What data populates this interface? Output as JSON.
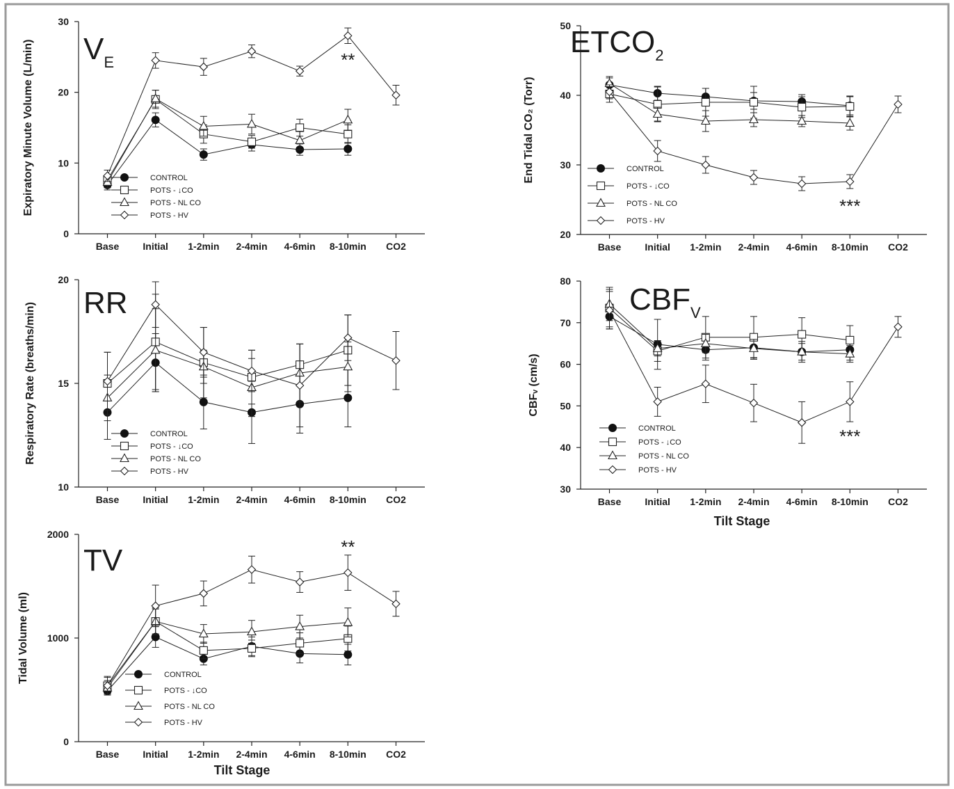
{
  "figure": {
    "x_title": "Tilt Stage",
    "panel_colors": {
      "line": "#222222",
      "fill_open": "#ffffff",
      "fill_solid": "#111111",
      "frame": "#999999"
    }
  },
  "chart_data": [
    {
      "id": "ve",
      "type": "line",
      "title": "V",
      "title_sub": "E",
      "ylabel": "Expiratory Minute Volume (L/min)",
      "xlabel": "",
      "categories": [
        "Base",
        "Initial",
        "1-2min",
        "2-4min",
        "4-6min",
        "8-10min",
        "CO2"
      ],
      "ylim": [
        0,
        30
      ],
      "yticks": [
        "0",
        "10",
        "20",
        "30"
      ],
      "legend_position": "lower-middle",
      "annotation": {
        "text": "**",
        "category": "8-10min"
      },
      "series": [
        {
          "name": "CONTROL",
          "marker": "circle-filled",
          "values": [
            6.9,
            16.1,
            11.2,
            12.6,
            11.9,
            12.0,
            null
          ],
          "errors": [
            0.7,
            1.0,
            0.8,
            0.9,
            0.8,
            0.9,
            null
          ]
        },
        {
          "name": "POTS - ↓CO",
          "marker": "square-open",
          "values": [
            7.6,
            19.0,
            14.1,
            13.0,
            15.0,
            14.1,
            null
          ],
          "errors": [
            0.7,
            1.3,
            1.3,
            0.9,
            1.2,
            1.3,
            null
          ]
        },
        {
          "name": "POTS - NL CO",
          "marker": "triangle-open",
          "values": [
            7.3,
            19.1,
            15.2,
            15.5,
            13.2,
            16.1,
            null
          ],
          "errors": [
            0.8,
            1.2,
            1.4,
            1.4,
            1.3,
            1.5,
            null
          ]
        },
        {
          "name": "POTS - HV",
          "marker": "diamond-open",
          "values": [
            8.2,
            24.5,
            23.6,
            25.8,
            23.0,
            28.0,
            19.6
          ],
          "errors": [
            0.8,
            1.1,
            1.2,
            0.9,
            0.7,
            1.1,
            1.4
          ]
        }
      ]
    },
    {
      "id": "etco2",
      "type": "line",
      "title": "ETCO",
      "title_sub": "2",
      "ylabel": "End Tidal CO₂ (Torr)",
      "xlabel": "",
      "categories": [
        "Base",
        "Initial",
        "1-2min",
        "2-4min",
        "4-6min",
        "8-10min",
        "CO2"
      ],
      "ylim": [
        20,
        50
      ],
      "yticks": [
        "20",
        "30",
        "40",
        "50"
      ],
      "legend_position": "lower-left",
      "annotation": {
        "text": "***",
        "category": "8-10min"
      },
      "series": [
        {
          "name": "CONTROL",
          "marker": "circle-filled",
          "values": [
            41.5,
            40.3,
            39.8,
            39.2,
            39.1,
            38.5,
            null
          ],
          "errors": [
            1.0,
            1.0,
            1.2,
            1.2,
            1.0,
            1.3,
            null
          ]
        },
        {
          "name": "POTS - ↓CO",
          "marker": "square-open",
          "values": [
            40.2,
            38.7,
            39.0,
            39.0,
            38.3,
            38.4,
            null
          ],
          "errors": [
            1.2,
            2.5,
            2.0,
            2.3,
            1.5,
            1.5,
            null
          ]
        },
        {
          "name": "POTS - NL CO",
          "marker": "triangle-open",
          "values": [
            41.7,
            37.3,
            36.3,
            36.5,
            36.3,
            36.0,
            null
          ],
          "errors": [
            1.0,
            1.0,
            1.5,
            1.0,
            0.8,
            1.0,
            null
          ]
        },
        {
          "name": "POTS - HV",
          "marker": "diamond-open",
          "values": [
            40.5,
            32.0,
            30.0,
            28.2,
            27.3,
            27.6,
            38.7
          ],
          "errors": [
            1.0,
            1.5,
            1.2,
            1.0,
            1.0,
            1.0,
            1.2
          ]
        }
      ]
    },
    {
      "id": "rr",
      "type": "line",
      "title": "RR",
      "title_sub": "",
      "ylabel": "Respiratory Rate (breaths/min)",
      "xlabel": "",
      "categories": [
        "Base",
        "Initial",
        "1-2min",
        "2-4min",
        "4-6min",
        "8-10min",
        "CO2"
      ],
      "ylim": [
        10,
        20
      ],
      "yticks": [
        "10",
        "15",
        "20"
      ],
      "legend_position": "lower-left",
      "annotation": null,
      "series": [
        {
          "name": "CONTROL",
          "marker": "circle-filled",
          "values": [
            13.6,
            16.0,
            14.1,
            13.6,
            14.0,
            14.3,
            null
          ],
          "errors": [
            1.3,
            1.4,
            1.3,
            1.5,
            1.4,
            1.4,
            null
          ]
        },
        {
          "name": "POTS - ↓CO",
          "marker": "square-open",
          "values": [
            15.0,
            17.0,
            16.0,
            15.3,
            15.9,
            16.6,
            null
          ],
          "errors": [
            1.5,
            2.3,
            1.7,
            1.3,
            1.0,
            1.7,
            null
          ]
        },
        {
          "name": "POTS - NL CO",
          "marker": "triangle-open",
          "values": [
            14.3,
            16.6,
            15.8,
            14.8,
            15.5,
            15.8,
            null
          ],
          "errors": [
            1.1,
            2.0,
            0.8,
            1.4,
            1.4,
            1.2,
            null
          ]
        },
        {
          "name": "POTS - HV",
          "marker": "diamond-open",
          "values": [
            15.1,
            18.8,
            16.5,
            15.6,
            14.9,
            17.2,
            16.1
          ],
          "errors": [
            1.4,
            1.1,
            1.2,
            1.0,
            2.0,
            1.1,
            1.4
          ]
        }
      ]
    },
    {
      "id": "cbfv",
      "type": "line",
      "title": "CBF",
      "title_sub": "V",
      "ylabel": "CBFᵥ (cm/s)",
      "xlabel": "Tilt Stage",
      "categories": [
        "Base",
        "Initial",
        "1-2min",
        "2-4min",
        "4-6min",
        "8-10min",
        "CO2"
      ],
      "ylim": [
        30,
        80
      ],
      "yticks": [
        "30",
        "40",
        "50",
        "60",
        "70",
        "80"
      ],
      "legend_position": "lower-left",
      "annotation": {
        "text": "***",
        "category": "8-10min"
      },
      "series": [
        {
          "name": "CONTROL",
          "marker": "circle-filled",
          "values": [
            71.5,
            64.8,
            63.5,
            64.0,
            63.0,
            63.5,
            null
          ],
          "errors": [
            3.0,
            6.0,
            2.5,
            2.8,
            2.5,
            2.5,
            null
          ]
        },
        {
          "name": "POTS - ↓CO",
          "marker": "square-open",
          "values": [
            73.5,
            63.2,
            66.5,
            66.5,
            67.2,
            65.8,
            null
          ],
          "errors": [
            4.5,
            2.5,
            5.0,
            5.0,
            4.0,
            3.5,
            null
          ]
        },
        {
          "name": "POTS - NL CO",
          "marker": "triangle-open",
          "values": [
            74.5,
            63.8,
            65.0,
            63.8,
            63.0,
            62.5,
            null
          ],
          "errors": [
            4.0,
            1.8,
            2.2,
            2.2,
            2.0,
            2.0,
            null
          ]
        },
        {
          "name": "POTS - HV",
          "marker": "diamond-open",
          "values": [
            73.0,
            51.0,
            55.3,
            50.7,
            46.0,
            51.0,
            69.0
          ],
          "errors": [
            4.5,
            3.5,
            4.5,
            4.5,
            5.0,
            4.8,
            2.5
          ]
        }
      ]
    },
    {
      "id": "tv",
      "type": "line",
      "title": "TV",
      "title_sub": "",
      "ylabel": "Tidal Volume (ml)",
      "xlabel": "Tilt Stage",
      "categories": [
        "Base",
        "Initial",
        "1-2min",
        "2-4min",
        "4-6min",
        "8-10min",
        "CO2"
      ],
      "ylim": [
        0,
        2000
      ],
      "yticks": [
        "0",
        "1000",
        "2000"
      ],
      "legend_position": "lower-left",
      "annotation": {
        "text": "**",
        "category": "8-10min"
      },
      "series": [
        {
          "name": "CONTROL",
          "marker": "circle-filled",
          "values": [
            490,
            1010,
            800,
            920,
            850,
            840,
            null
          ],
          "errors": [
            40,
            100,
            60,
            90,
            90,
            100,
            null
          ]
        },
        {
          "name": "POTS - ↓CO",
          "marker": "square-open",
          "values": [
            540,
            1160,
            880,
            900,
            950,
            995,
            null
          ],
          "errors": [
            80,
            120,
            80,
            80,
            100,
            120,
            null
          ]
        },
        {
          "name": "POTS - NL CO",
          "marker": "triangle-open",
          "values": [
            520,
            1160,
            1040,
            1060,
            1110,
            1150,
            null
          ],
          "errors": [
            70,
            130,
            90,
            110,
            110,
            140,
            null
          ]
        },
        {
          "name": "POTS - HV",
          "marker": "diamond-open",
          "values": [
            540,
            1310,
            1430,
            1660,
            1540,
            1630,
            1330
          ],
          "errors": [
            90,
            200,
            120,
            130,
            100,
            170,
            120
          ]
        }
      ]
    }
  ]
}
